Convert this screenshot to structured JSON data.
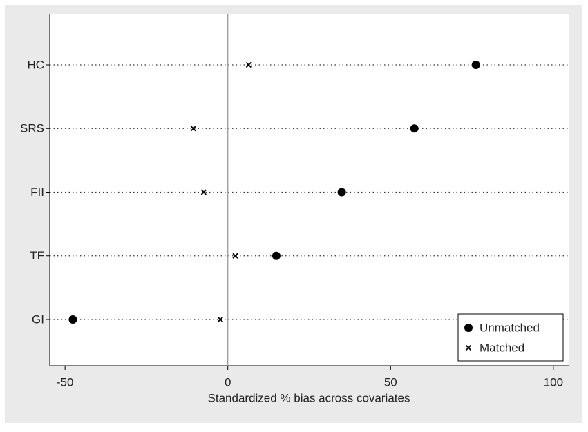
{
  "chart_data": {
    "type": "dot",
    "x_label": "Standardized % bias across covariates",
    "categories": [
      "HC",
      "SRS",
      "FII",
      "TF",
      "GI"
    ],
    "series": [
      {
        "name": "Unmatched",
        "color": "#000000",
        "marker": "circle",
        "values": [
          76.2,
          57.3,
          35.0,
          14.9,
          -47.6
        ]
      },
      {
        "name": "Matched",
        "color": "#000000",
        "marker": "x",
        "values": [
          6.4,
          -10.6,
          -7.4,
          2.3,
          -2.3
        ]
      }
    ],
    "xlim": [
      -54.7,
      104.7
    ],
    "xticks": [
      -50,
      0,
      50,
      100
    ],
    "xline": 0,
    "grid": true,
    "legend": "bottom-right"
  }
}
